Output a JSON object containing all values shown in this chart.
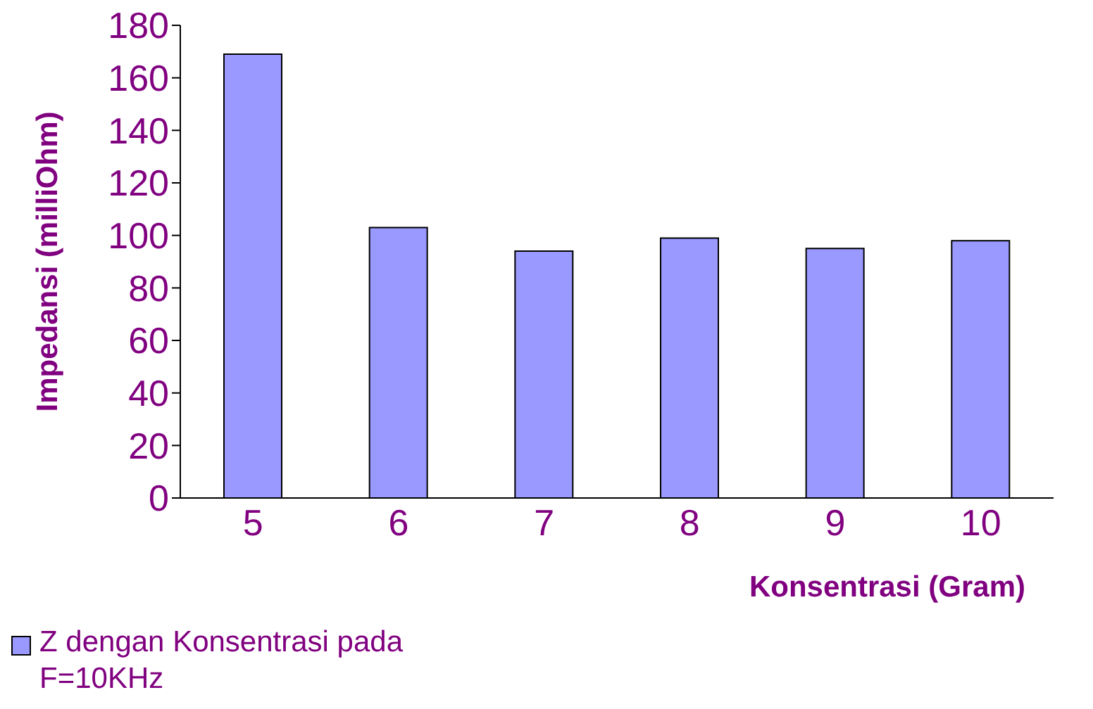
{
  "chart_data": {
    "type": "bar",
    "xlabel": "Konsentrasi (Gram)",
    "ylabel": "Impedansi (milliOhm)",
    "categories": [
      "5",
      "6",
      "7",
      "8",
      "9",
      "10"
    ],
    "series": [
      {
        "name": "Z dengan Konsentrasi pada F=10KHz",
        "color": "#9999ff",
        "values": [
          169,
          103,
          94,
          99,
          95,
          98
        ]
      }
    ],
    "ylim": [
      0,
      180
    ],
    "yticks": [
      0,
      20,
      40,
      60,
      80,
      100,
      120,
      140,
      160,
      180
    ],
    "legend": "bottom left"
  }
}
